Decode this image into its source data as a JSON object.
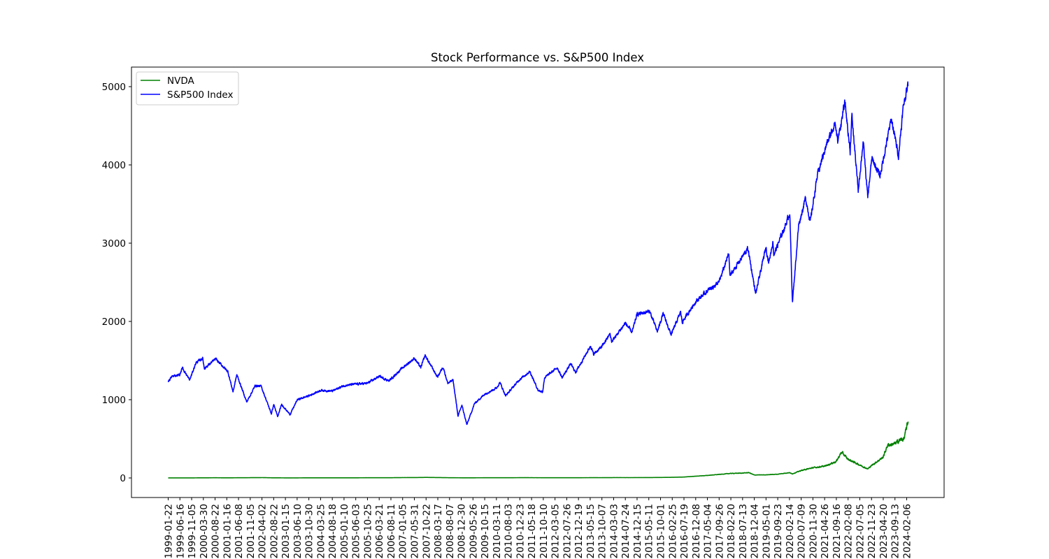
{
  "chart_data": {
    "type": "line",
    "title": "Stock Performance vs. S&P500 Index",
    "xlabel": "",
    "ylabel": "",
    "ylim": [
      -250,
      5250
    ],
    "yticks": [
      0,
      1000,
      2000,
      3000,
      4000,
      5000
    ],
    "grid": false,
    "legend_position": "upper-left",
    "x_tick_labels": [
      "1999-01-22",
      "1999-06-16",
      "1999-11-05",
      "2000-03-30",
      "2000-08-22",
      "2001-01-16",
      "2001-06-08",
      "2001-11-05",
      "2002-04-02",
      "2002-08-22",
      "2003-01-15",
      "2003-06-10",
      "2003-10-30",
      "2004-03-25",
      "2004-08-18",
      "2005-01-10",
      "2005-06-03",
      "2005-10-25",
      "2006-03-21",
      "2006-08-11",
      "2007-01-05",
      "2007-05-31",
      "2007-10-22",
      "2008-03-17",
      "2008-08-07",
      "2008-12-30",
      "2009-05-26",
      "2009-10-15",
      "2010-03-11",
      "2010-08-03",
      "2010-12-23",
      "2011-05-18",
      "2011-10-10",
      "2012-03-05",
      "2012-07-26",
      "2012-12-19",
      "2013-05-15",
      "2013-10-07",
      "2014-03-03",
      "2014-07-24",
      "2014-12-15",
      "2015-05-11",
      "2015-10-01",
      "2016-02-25",
      "2016-07-19",
      "2016-12-08",
      "2017-05-04",
      "2017-09-26",
      "2018-02-20",
      "2018-07-13",
      "2018-12-04",
      "2019-05-01",
      "2019-09-23",
      "2020-02-14",
      "2020-07-09",
      "2020-11-30",
      "2021-04-26",
      "2021-09-16",
      "2022-02-08",
      "2022-07-05",
      "2022-11-23",
      "2023-04-20",
      "2023-09-13",
      "2024-02-06"
    ],
    "series": [
      {
        "name": "NVDA",
        "color": "#008000",
        "x": [
          "1999-01-22",
          "1999-06-16",
          "1999-11-05",
          "2000-03-30",
          "2000-08-22",
          "2001-01-16",
          "2001-06-08",
          "2001-11-05",
          "2002-04-02",
          "2002-08-22",
          "2003-01-15",
          "2003-06-10",
          "2003-10-30",
          "2004-03-25",
          "2004-08-18",
          "2005-01-10",
          "2005-06-03",
          "2005-10-25",
          "2006-03-21",
          "2006-08-11",
          "2007-01-05",
          "2007-05-31",
          "2007-10-22",
          "2008-03-17",
          "2008-08-07",
          "2008-12-30",
          "2009-05-26",
          "2009-10-15",
          "2010-03-11",
          "2010-08-03",
          "2010-12-23",
          "2011-05-18",
          "2011-10-10",
          "2012-03-05",
          "2012-07-26",
          "2012-12-19",
          "2013-05-15",
          "2013-10-07",
          "2014-03-03",
          "2014-07-24",
          "2014-12-15",
          "2015-05-11",
          "2015-10-01",
          "2016-02-25",
          "2016-07-19",
          "2016-12-08",
          "2017-05-04",
          "2017-09-26",
          "2018-02-20",
          "2018-07-13",
          "2018-10-02",
          "2018-12-04",
          "2019-05-01",
          "2019-09-23",
          "2020-02-14",
          "2020-03-20",
          "2020-07-09",
          "2020-11-30",
          "2021-04-26",
          "2021-09-16",
          "2021-11-22",
          "2022-02-08",
          "2022-07-05",
          "2022-10-12",
          "2022-11-23",
          "2023-04-20",
          "2023-06-15",
          "2023-09-13",
          "2023-11-20",
          "2024-01-05",
          "2024-02-06",
          "2024-02-23"
        ],
        "y": [
          0.4,
          0.6,
          0.9,
          1.5,
          2.5,
          1.5,
          2.5,
          3.5,
          4.5,
          1.5,
          1,
          1,
          1.5,
          1.5,
          1.5,
          2,
          2,
          2.5,
          3,
          3,
          4.5,
          5,
          7,
          5,
          3,
          2,
          2,
          2.5,
          3,
          3,
          3.5,
          3.5,
          3,
          3,
          3,
          3,
          3.5,
          3.5,
          4.5,
          4.5,
          4.5,
          5,
          6.5,
          8,
          12,
          22,
          32,
          45,
          58,
          62,
          68,
          38,
          40,
          48,
          68,
          52,
          95,
          130,
          150,
          210,
          330,
          240,
          165,
          115,
          155,
          265,
          420,
          435,
          490,
          500,
          650,
          720
        ]
      },
      {
        "name": "S&P500 Index",
        "color": "#0000ff",
        "x": [
          "1999-01-22",
          "1999-03-15",
          "1999-06-16",
          "1999-07-16",
          "1999-10-15",
          "1999-12-31",
          "2000-03-24",
          "2000-04-14",
          "2000-09-01",
          "2001-01-30",
          "2001-04-04",
          "2001-05-21",
          "2001-09-21",
          "2002-01-04",
          "2002-03-19",
          "2002-07-23",
          "2002-08-22",
          "2002-10-09",
          "2002-11-27",
          "2003-03-11",
          "2003-06-10",
          "2003-10-30",
          "2004-03-25",
          "2004-08-12",
          "2005-01-10",
          "2005-06-03",
          "2005-10-25",
          "2006-03-21",
          "2006-07-18",
          "2007-01-05",
          "2007-05-31",
          "2007-08-16",
          "2007-10-09",
          "2008-03-10",
          "2008-05-19",
          "2008-07-15",
          "2008-09-19",
          "2008-11-20",
          "2009-01-06",
          "2009-03-09",
          "2009-06-12",
          "2009-10-15",
          "2010-03-11",
          "2010-04-23",
          "2010-07-02",
          "2010-12-23",
          "2011-04-29",
          "2011-08-08",
          "2011-10-03",
          "2011-10-27",
          "2012-04-02",
          "2012-06-01",
          "2012-09-14",
          "2012-11-15",
          "2013-05-21",
          "2013-06-24",
          "2013-10-07",
          "2014-01-15",
          "2014-02-05",
          "2014-07-24",
          "2014-10-15",
          "2014-12-15",
          "2015-05-20",
          "2015-08-25",
          "2015-11-03",
          "2016-02-11",
          "2016-06-08",
          "2016-06-27",
          "2016-12-08",
          "2017-05-04",
          "2017-09-26",
          "2018-01-26",
          "2018-02-08",
          "2018-07-13",
          "2018-09-20",
          "2018-12-24",
          "2019-04-30",
          "2019-06-03",
          "2019-07-26",
          "2019-08-05",
          "2019-12-31",
          "2020-02-19",
          "2020-03-23",
          "2020-06-08",
          "2020-09-02",
          "2020-10-30",
          "2021-01-25",
          "2021-04-26",
          "2021-09-02",
          "2021-10-04",
          "2022-01-03",
          "2022-03-08",
          "2022-03-29",
          "2022-06-16",
          "2022-08-16",
          "2022-10-12",
          "2022-12-01",
          "2023-03-13",
          "2023-07-31",
          "2023-10-27",
          "2023-12-29",
          "2024-02-06",
          "2024-02-23"
        ],
        "y": [
          1235,
          1300,
          1320,
          1410,
          1250,
          1470,
          1530,
          1400,
          1520,
          1360,
          1100,
          1320,
          970,
          1180,
          1170,
          820,
          940,
          780,
          940,
          810,
          1000,
          1050,
          1120,
          1110,
          1180,
          1200,
          1210,
          1300,
          1240,
          1410,
          1530,
          1410,
          1565,
          1290,
          1420,
          1210,
          1250,
          790,
          930,
          680,
          950,
          1070,
          1150,
          1220,
          1050,
          1260,
          1360,
          1120,
          1100,
          1280,
          1410,
          1280,
          1460,
          1350,
          1690,
          1580,
          1680,
          1840,
          1740,
          1980,
          1860,
          2090,
          2130,
          1870,
          2100,
          1830,
          2120,
          1990,
          2250,
          2390,
          2500,
          2870,
          2580,
          2830,
          2930,
          2350,
          2950,
          2750,
          3020,
          2850,
          3240,
          3390,
          2240,
          3230,
          3580,
          3270,
          3860,
          4190,
          4540,
          4300,
          4800,
          4170,
          4630,
          3670,
          4300,
          3580,
          4080,
          3860,
          4590,
          4120,
          4770,
          4950,
          5020
        ]
      }
    ]
  }
}
